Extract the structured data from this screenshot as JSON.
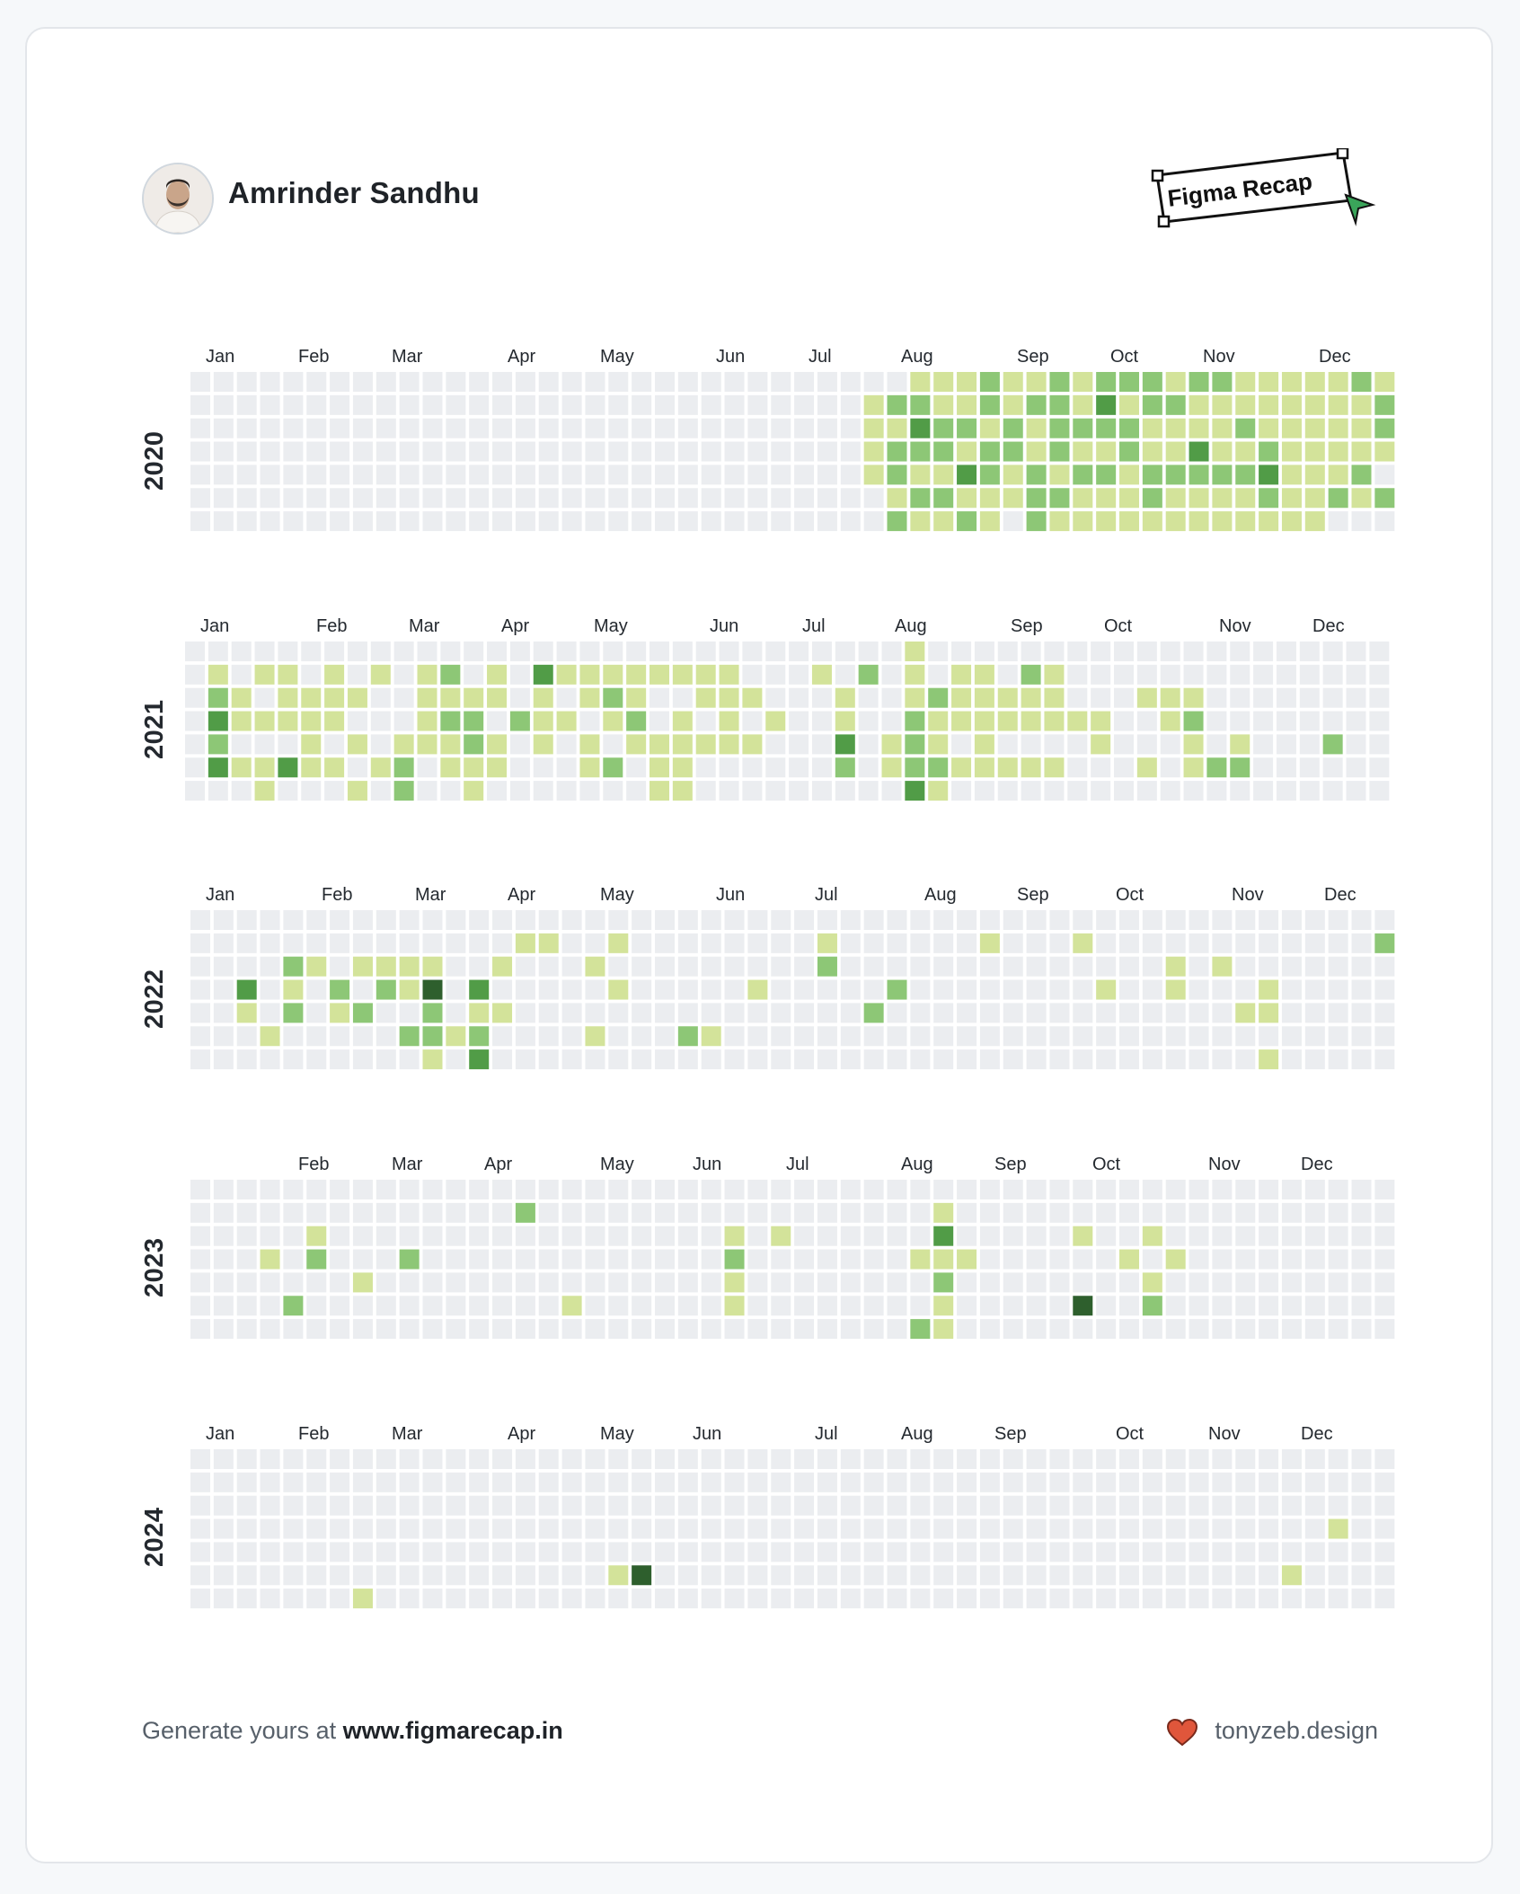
{
  "header": {
    "user_name": "Amrinder Sandhu",
    "badge_label": "Figma Recap",
    "avatar_icon": "avatar-icon",
    "cursor_icon": "cursor-arrow-icon"
  },
  "colors": {
    "empty": "#ebedf0",
    "level1": "#d3e39a",
    "level2": "#8dc776",
    "level3": "#519c47",
    "level4": "#2e5f2d",
    "cursor": "#3aa55a",
    "heart": "#e0563b"
  },
  "calendars": [
    {
      "year": "2020",
      "months": [
        "Jan",
        "Feb",
        "Mar",
        "Apr",
        "May",
        "Jun",
        "Jul",
        "Aug",
        "Sep",
        "Oct",
        "Nov",
        "Dec"
      ],
      "active": [
        "0-31-1",
        "0-32-1",
        "0-33-1",
        "0-34-2",
        "0-35-1",
        "0-36-1",
        "0-37-2",
        "0-38-1",
        "0-39-2",
        "0-40-2",
        "0-41-2",
        "0-42-1",
        "0-43-2",
        "0-44-2",
        "0-45-1",
        "0-46-1",
        "0-47-1",
        "0-48-1",
        "0-49-1",
        "0-50-2",
        "0-51-1",
        "1-29-1",
        "1-30-2",
        "1-31-2",
        "1-32-1",
        "1-33-1",
        "1-34-2",
        "1-35-1",
        "1-36-2",
        "1-37-2",
        "1-38-1",
        "1-39-3",
        "1-40-1",
        "1-41-2",
        "1-42-2",
        "1-43-1",
        "1-44-1",
        "1-45-1",
        "1-46-1",
        "1-47-1",
        "1-48-1",
        "1-49-1",
        "1-50-1",
        "1-51-2",
        "2-29-1",
        "2-30-1",
        "2-31-3",
        "2-32-2",
        "2-33-2",
        "2-34-1",
        "2-35-2",
        "2-36-1",
        "2-37-2",
        "2-38-2",
        "2-39-2",
        "2-40-2",
        "2-41-1",
        "2-42-1",
        "2-43-1",
        "2-44-1",
        "2-45-2",
        "2-46-1",
        "2-47-1",
        "2-48-1",
        "2-49-1",
        "2-50-1",
        "2-51-2",
        "3-29-1",
        "3-30-2",
        "3-31-2",
        "3-32-2",
        "3-33-1",
        "3-34-2",
        "3-35-2",
        "3-36-1",
        "3-37-2",
        "3-38-1",
        "3-39-1",
        "3-40-2",
        "3-41-1",
        "3-42-1",
        "3-43-3",
        "3-44-1",
        "3-45-1",
        "3-46-2",
        "3-47-1",
        "3-48-1",
        "3-49-1",
        "3-50-1",
        "3-51-1",
        "4-29-1",
        "4-30-2",
        "4-31-1",
        "4-32-1",
        "4-33-3",
        "4-34-2",
        "4-35-1",
        "4-36-2",
        "4-37-1",
        "4-38-2",
        "4-39-2",
        "4-40-1",
        "4-41-2",
        "4-42-2",
        "4-43-2",
        "4-44-2",
        "4-45-2",
        "4-46-3",
        "4-47-1",
        "4-48-1",
        "4-49-1",
        "4-50-2",
        "5-30-1",
        "5-31-2",
        "5-32-2",
        "5-33-1",
        "5-34-1",
        "5-35-1",
        "5-36-2",
        "5-37-2",
        "5-38-1",
        "5-39-1",
        "5-40-1",
        "5-41-2",
        "5-42-1",
        "5-43-1",
        "5-44-1",
        "5-45-1",
        "5-46-2",
        "5-47-1",
        "5-48-1",
        "5-49-2",
        "5-50-1",
        "5-51-2",
        "6-30-2",
        "6-31-1",
        "6-32-1",
        "6-33-2",
        "6-34-1",
        "6-36-2",
        "6-37-1",
        "6-38-1",
        "6-39-1",
        "6-40-1",
        "6-41-1",
        "6-42-1",
        "6-43-1",
        "6-44-1",
        "6-45-1",
        "6-46-1",
        "6-47-1",
        "6-48-1"
      ]
    },
    {
      "year": "2021",
      "months": [
        "Jan",
        "Feb",
        "Mar",
        "Apr",
        "May",
        "Jun",
        "Jul",
        "Aug",
        "Sep",
        "Oct",
        "Nov",
        "Dec"
      ],
      "active": [
        "0-31-1",
        "1-1-1",
        "1-3-1",
        "1-4-1",
        "1-6-1",
        "1-8-1",
        "1-10-1",
        "1-11-2",
        "1-13-1",
        "1-15-3",
        "1-16-1",
        "1-17-1",
        "1-18-1",
        "1-19-1",
        "1-20-1",
        "1-21-1",
        "1-22-1",
        "1-23-1",
        "1-27-1",
        "1-29-2",
        "1-31-1",
        "1-33-1",
        "1-34-1",
        "1-36-2",
        "1-37-1",
        "2-1-2",
        "2-2-1",
        "2-4-1",
        "2-5-1",
        "2-6-1",
        "2-7-1",
        "2-10-1",
        "2-11-1",
        "2-12-1",
        "2-13-1",
        "2-15-1",
        "2-17-1",
        "2-18-2",
        "2-19-1",
        "2-22-1",
        "2-23-1",
        "2-24-1",
        "2-28-1",
        "2-31-1",
        "2-32-2",
        "2-33-1",
        "2-34-1",
        "2-35-1",
        "2-36-1",
        "2-37-1",
        "2-41-1",
        "2-42-1",
        "2-43-1",
        "3-1-3",
        "3-2-1",
        "3-3-1",
        "3-4-1",
        "3-5-1",
        "3-6-1",
        "3-10-1",
        "3-11-2",
        "3-12-2",
        "3-14-2",
        "3-15-1",
        "3-16-1",
        "3-18-1",
        "3-19-2",
        "3-21-1",
        "3-23-1",
        "3-25-1",
        "3-28-1",
        "3-31-2",
        "3-32-1",
        "3-33-1",
        "3-34-1",
        "3-35-1",
        "3-36-1",
        "3-37-1",
        "3-38-1",
        "3-39-1",
        "3-42-1",
        "3-43-2",
        "4-1-2",
        "4-5-1",
        "4-7-1",
        "4-9-1",
        "4-10-1",
        "4-11-1",
        "4-12-2",
        "4-13-1",
        "4-15-1",
        "4-17-1",
        "4-19-1",
        "4-20-1",
        "4-21-1",
        "4-22-1",
        "4-23-1",
        "4-24-1",
        "4-28-3",
        "4-30-1",
        "4-31-2",
        "4-32-1",
        "4-34-1",
        "4-39-1",
        "4-43-1",
        "4-45-1",
        "4-49-2",
        "5-1-3",
        "5-2-1",
        "5-3-1",
        "5-4-3",
        "5-5-1",
        "5-6-1",
        "5-8-1",
        "5-9-2",
        "5-11-1",
        "5-12-1",
        "5-13-1",
        "5-17-1",
        "5-18-2",
        "5-20-1",
        "5-21-1",
        "5-28-2",
        "5-30-1",
        "5-31-2",
        "5-32-2",
        "5-33-1",
        "5-34-1",
        "5-35-1",
        "5-36-1",
        "5-37-1",
        "5-41-1",
        "5-43-1",
        "5-44-2",
        "5-45-2",
        "6-3-1",
        "6-7-1",
        "6-9-2",
        "6-12-1",
        "6-20-1",
        "6-21-1",
        "6-31-3",
        "6-32-1"
      ]
    },
    {
      "year": "2022",
      "months": [
        "Jan",
        "Feb",
        "Mar",
        "Apr",
        "May",
        "Jun",
        "Jul",
        "Aug",
        "Sep",
        "Oct",
        "Nov",
        "Dec"
      ],
      "active": [
        "1-14-1",
        "1-15-1",
        "1-18-1",
        "1-27-1",
        "1-34-1",
        "1-38-1",
        "1-51-2",
        "2-4-2",
        "2-5-1",
        "2-7-1",
        "2-8-1",
        "2-9-1",
        "2-10-1",
        "2-13-1",
        "2-17-1",
        "2-27-2",
        "2-42-1",
        "2-44-1",
        "3-2-3",
        "3-4-1",
        "3-6-2",
        "3-8-2",
        "3-9-1",
        "3-10-4",
        "3-12-3",
        "3-18-1",
        "3-24-1",
        "3-30-2",
        "3-39-1",
        "3-42-1",
        "3-46-1",
        "4-2-1",
        "4-4-2",
        "4-6-1",
        "4-7-2",
        "4-10-2",
        "4-12-1",
        "4-13-1",
        "4-29-2",
        "4-45-1",
        "4-46-1",
        "5-3-1",
        "5-9-2",
        "5-10-2",
        "5-11-1",
        "5-12-2",
        "5-17-1",
        "5-21-2",
        "5-22-1",
        "6-10-1",
        "6-12-3",
        "6-46-1"
      ]
    },
    {
      "year": "2023",
      "months": [
        "Feb",
        "Mar",
        "Apr",
        "May",
        "Jun",
        "Jul",
        "Aug",
        "Sep",
        "Oct",
        "Nov",
        "Dec"
      ],
      "active": [
        "1-14-2",
        "1-32-1",
        "2-5-1",
        "2-23-1",
        "2-25-1",
        "2-32-3",
        "2-38-1",
        "2-41-1",
        "3-3-1",
        "3-5-2",
        "3-9-2",
        "3-23-2",
        "3-31-1",
        "3-32-1",
        "3-33-1",
        "3-40-1",
        "3-42-1",
        "4-7-1",
        "4-23-1",
        "4-32-2",
        "4-41-1",
        "5-4-2",
        "5-16-1",
        "5-23-1",
        "5-32-1",
        "5-38-4",
        "5-41-2",
        "6-31-2",
        "6-32-1"
      ]
    },
    {
      "year": "2024",
      "months": [
        "Jan",
        "Feb",
        "Mar",
        "Apr",
        "May",
        "Jun",
        "Jul",
        "Aug",
        "Sep",
        "Oct",
        "Nov",
        "Dec"
      ],
      "active": [
        "3-49-1",
        "5-18-1",
        "5-19-4",
        "5-47-1",
        "6-7-1"
      ]
    }
  ],
  "footer": {
    "prefix": "Generate yours at",
    "url": "www.figmarecap.in",
    "credit": "tonyzeb.design",
    "heart_icon": "heart-icon"
  }
}
